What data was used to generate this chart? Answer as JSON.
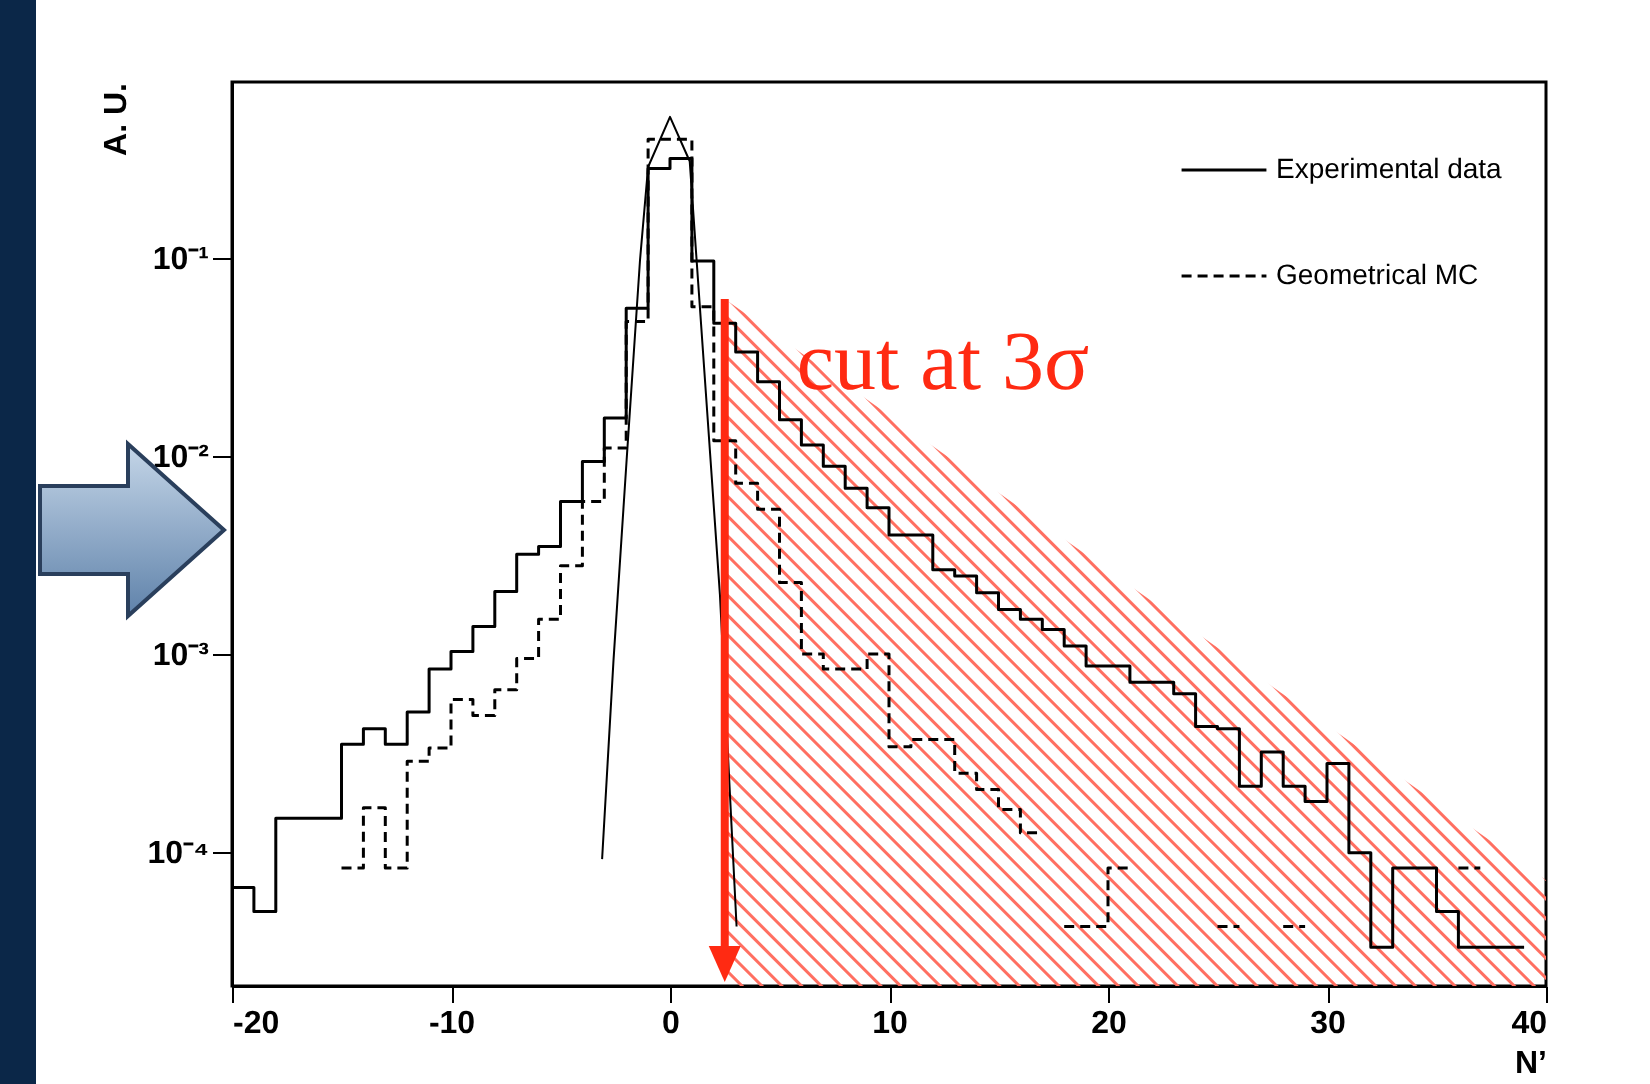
{
  "chart_data": {
    "type": "line",
    "xlabel": "N’",
    "ylabel": "A. U.",
    "series": [
      {
        "name": "Experimental data",
        "color": "#000000",
        "line_style": "solid",
        "x": [
          -20,
          -19,
          -19,
          -18,
          -18,
          -15,
          -15,
          -14,
          -14,
          -13,
          -13,
          -12,
          -12,
          -11,
          -11,
          -10,
          -10,
          -9,
          -9,
          -8,
          -8,
          -7,
          -7,
          -6,
          -6,
          -5,
          -5,
          -4,
          -4,
          -3,
          -3,
          -2,
          -2,
          -1,
          -1,
          0,
          0,
          1,
          1,
          2,
          2,
          3,
          3,
          4,
          4,
          5,
          5,
          6,
          6,
          7,
          7,
          8,
          8,
          9,
          9,
          10,
          10,
          12,
          12,
          13,
          13,
          14,
          14,
          15,
          15,
          16,
          16,
          17,
          17,
          18,
          18,
          19,
          19,
          21,
          21,
          23,
          23,
          24,
          24,
          25,
          25,
          26,
          26,
          27,
          27,
          28,
          28,
          29,
          29,
          30,
          30,
          31,
          31,
          32,
          32,
          33,
          33,
          35,
          35,
          36,
          36,
          39
        ],
        "values": [
          6.6e-05,
          6.6e-05,
          5e-05,
          5e-05,
          0.000148,
          0.000148,
          0.00035,
          0.00035,
          0.00042,
          0.00042,
          0.00035,
          0.00035,
          0.00051,
          0.00051,
          0.00084,
          0.00084,
          0.00103,
          0.00103,
          0.00138,
          0.00138,
          0.00207,
          0.00207,
          0.0032,
          0.0032,
          0.0035,
          0.0035,
          0.0059,
          0.0059,
          0.0094,
          0.0094,
          0.0156,
          0.0156,
          0.056,
          0.056,
          0.285,
          0.285,
          0.32,
          0.32,
          0.097,
          0.097,
          0.047,
          0.047,
          0.0337,
          0.0337,
          0.0238,
          0.0238,
          0.0153,
          0.0153,
          0.0114,
          0.0114,
          0.0089,
          0.0089,
          0.0069,
          0.0069,
          0.0055,
          0.0055,
          0.004,
          0.004,
          0.00267,
          0.00267,
          0.00248,
          0.00248,
          0.00204,
          0.00204,
          0.00168,
          0.00168,
          0.0015,
          0.0015,
          0.00133,
          0.00133,
          0.0011,
          0.0011,
          0.00087,
          0.00087,
          0.00072,
          0.00072,
          0.00063,
          0.00063,
          0.00043,
          0.00043,
          0.00042,
          0.00042,
          0.000215,
          0.000215,
          0.00032,
          0.00032,
          0.000215,
          0.000215,
          0.00018,
          0.00018,
          0.00028,
          0.00028,
          9.9e-05,
          9.9e-05,
          3.3e-05,
          3.3e-05,
          8.3e-05,
          8.3e-05,
          5e-05,
          5e-05,
          3.3e-05,
          3.3e-05
        ]
      },
      {
        "name": "Geometrical MC",
        "color": "#000000",
        "line_style": "dashed",
        "x": [
          -15,
          -14,
          -14,
          -13,
          -13,
          -12,
          -12,
          -11,
          -11,
          -10,
          -10,
          -9,
          -9,
          -8,
          -8,
          -7,
          -7,
          -6,
          -6,
          -5,
          -5,
          -4,
          -4,
          -3,
          -3,
          -2,
          -2,
          -1,
          -1,
          1,
          1,
          2,
          2,
          3,
          3,
          4,
          4,
          5,
          5,
          6,
          6,
          7,
          7,
          9,
          9,
          10,
          10,
          11,
          11,
          13,
          13,
          14,
          14,
          15,
          15,
          16,
          16,
          17,
          null,
          18,
          20,
          20,
          21,
          null,
          25,
          26,
          null,
          28,
          29,
          null,
          36,
          37
        ],
        "values": [
          8.3e-05,
          8.3e-05,
          0.000167,
          0.000167,
          8.3e-05,
          8.3e-05,
          0.000287,
          0.000287,
          0.000335,
          0.000335,
          0.00059,
          0.00059,
          0.00049,
          0.00049,
          0.00066,
          0.00066,
          0.00095,
          0.00095,
          0.0015,
          0.0015,
          0.0028,
          0.0028,
          0.0059,
          0.0059,
          0.011,
          0.011,
          0.048,
          0.048,
          0.4,
          0.4,
          0.057,
          0.057,
          0.012,
          0.012,
          0.0073,
          0.0073,
          0.0054,
          0.0054,
          0.0023,
          0.0023,
          0.001,
          0.001,
          0.00084,
          0.00084,
          0.001,
          0.001,
          0.00034,
          0.00034,
          0.00037,
          0.00037,
          0.00025,
          0.00025,
          0.000207,
          0.000207,
          0.000164,
          0.000164,
          0.000125,
          0.000125,
          null,
          4.2e-05,
          4.2e-05,
          8.3e-05,
          8.3e-05,
          null,
          4.2e-05,
          4.2e-05,
          null,
          4.2e-05,
          4.2e-05,
          null,
          8.3e-05,
          8.3e-05
        ]
      },
      {
        "color": "#000000",
        "line_style": "solid",
        "x": [
          -3.1,
          -2.58,
          -1.98,
          -1.37,
          -1.0,
          0,
          0.9,
          2.28,
          3.04
        ],
        "values": [
          9.2e-05,
          0.00093,
          0.0096,
          0.098,
          0.29,
          0.52,
          0.31,
          0.002,
          4.2e-05
        ]
      }
    ],
    "xlim": [
      -20,
      40
    ],
    "xticks": [
      -20,
      -10,
      0,
      10,
      20,
      30,
      40
    ],
    "ylim": [
      2.1e-05,
      0.78
    ],
    "yticks": [
      {
        "value": 0.0001,
        "label": "10⁻⁴"
      },
      {
        "value": 0.001,
        "label": "10⁻³"
      },
      {
        "value": 0.01,
        "label": "10⁻²"
      },
      {
        "value": 0.1,
        "label": "10⁻¹"
      }
    ],
    "log": "y",
    "grid": false,
    "legend": "top right",
    "ref_lines": [
      {
        "axis": "x",
        "value": 2.5,
        "label": "cut at 3σ",
        "color": "#ff2a12"
      }
    ],
    "bands": [
      {
        "axis": "x",
        "from": 2.5,
        "to": 40,
        "color": "#ff6f61"
      }
    ]
  }
}
